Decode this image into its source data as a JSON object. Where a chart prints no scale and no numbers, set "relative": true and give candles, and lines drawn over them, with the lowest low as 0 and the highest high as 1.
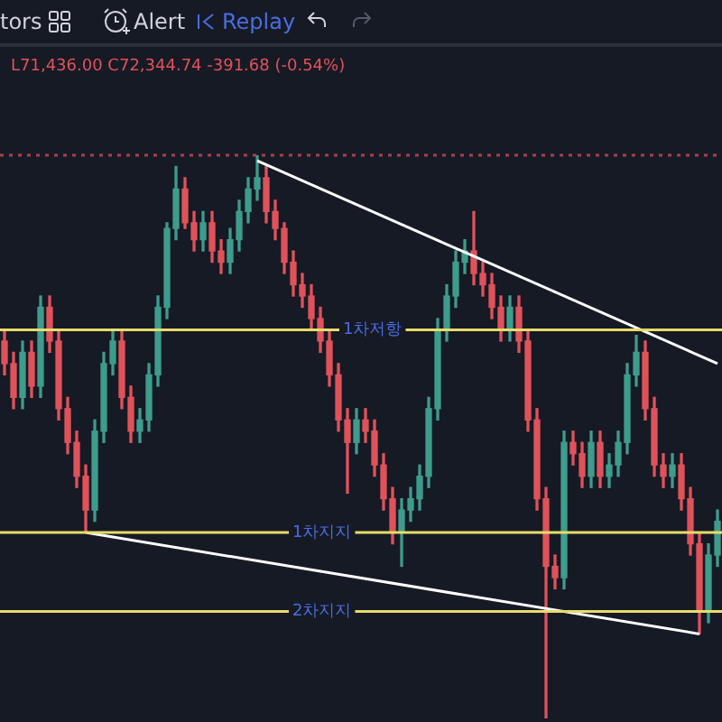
{
  "chart_data": {
    "type": "candlestick",
    "relative": true,
    "categories": [
      null,
      null,
      null,
      null,
      null,
      null,
      null,
      null,
      null,
      null,
      null,
      null,
      null,
      null,
      null,
      null,
      null,
      null,
      null,
      null,
      null,
      null,
      null,
      null,
      null,
      null,
      null,
      null,
      null,
      null,
      null,
      null,
      null,
      null,
      null,
      null,
      null,
      null,
      null,
      null,
      null,
      null,
      null,
      null,
      null,
      null,
      null,
      null,
      null,
      null,
      null,
      null,
      null,
      null,
      null,
      null,
      null,
      null,
      null,
      null,
      null,
      null,
      null,
      null,
      null,
      null,
      null,
      null,
      null,
      null,
      null,
      null,
      null,
      null,
      null,
      null,
      null,
      null,
      null,
      null
    ],
    "ohlc": [
      [
        0.67,
        0.69,
        0.61,
        0.63
      ],
      [
        0.63,
        0.65,
        0.55,
        0.57
      ],
      [
        0.57,
        0.67,
        0.55,
        0.65
      ],
      [
        0.65,
        0.67,
        0.57,
        0.59
      ],
      [
        0.59,
        0.75,
        0.57,
        0.73
      ],
      [
        0.73,
        0.75,
        0.65,
        0.67
      ],
      [
        0.67,
        0.69,
        0.53,
        0.55
      ],
      [
        0.55,
        0.57,
        0.47,
        0.49
      ],
      [
        0.49,
        0.51,
        0.41,
        0.43
      ],
      [
        0.43,
        0.45,
        0.33,
        0.37
      ],
      [
        0.37,
        0.53,
        0.35,
        0.51
      ],
      [
        0.51,
        0.65,
        0.49,
        0.63
      ],
      [
        0.63,
        0.69,
        0.61,
        0.67
      ],
      [
        0.67,
        0.69,
        0.55,
        0.57
      ],
      [
        0.57,
        0.59,
        0.49,
        0.51
      ],
      [
        0.51,
        0.55,
        0.49,
        0.53
      ],
      [
        0.53,
        0.63,
        0.51,
        0.61
      ],
      [
        0.61,
        0.75,
        0.59,
        0.73
      ],
      [
        0.73,
        0.88,
        0.71,
        0.87
      ],
      [
        0.87,
        0.98,
        0.85,
        0.94
      ],
      [
        0.94,
        0.96,
        0.87,
        0.88
      ],
      [
        0.88,
        0.9,
        0.83,
        0.85
      ],
      [
        0.85,
        0.9,
        0.83,
        0.88
      ],
      [
        0.88,
        0.9,
        0.81,
        0.83
      ],
      [
        0.83,
        0.85,
        0.79,
        0.81
      ],
      [
        0.81,
        0.87,
        0.79,
        0.85
      ],
      [
        0.85,
        0.92,
        0.83,
        0.9
      ],
      [
        0.9,
        0.96,
        0.88,
        0.94
      ],
      [
        0.94,
        1.0,
        0.92,
        0.96
      ],
      [
        0.96,
        0.98,
        0.88,
        0.9
      ],
      [
        0.9,
        0.92,
        0.85,
        0.87
      ],
      [
        0.87,
        0.88,
        0.79,
        0.81
      ],
      [
        0.81,
        0.83,
        0.75,
        0.77
      ],
      [
        0.77,
        0.79,
        0.73,
        0.75
      ],
      [
        0.75,
        0.77,
        0.69,
        0.71
      ],
      [
        0.71,
        0.73,
        0.65,
        0.67
      ],
      [
        0.67,
        0.69,
        0.59,
        0.61
      ],
      [
        0.61,
        0.63,
        0.51,
        0.53
      ],
      [
        0.53,
        0.55,
        0.4,
        0.49
      ],
      [
        0.49,
        0.55,
        0.47,
        0.53
      ],
      [
        0.53,
        0.55,
        0.49,
        0.51
      ],
      [
        0.51,
        0.53,
        0.43,
        0.45
      ],
      [
        0.45,
        0.47,
        0.37,
        0.39
      ],
      [
        0.39,
        0.41,
        0.31,
        0.33
      ],
      [
        0.33,
        0.39,
        0.27,
        0.37
      ],
      [
        0.37,
        0.41,
        0.35,
        0.39
      ],
      [
        0.39,
        0.45,
        0.37,
        0.43
      ],
      [
        0.43,
        0.57,
        0.41,
        0.55
      ],
      [
        0.55,
        0.71,
        0.53,
        0.69
      ],
      [
        0.69,
        0.77,
        0.67,
        0.75
      ],
      [
        0.75,
        0.83,
        0.73,
        0.81
      ],
      [
        0.81,
        0.85,
        0.79,
        0.83
      ],
      [
        0.83,
        0.9,
        0.77,
        0.79
      ],
      [
        0.79,
        0.81,
        0.75,
        0.77
      ],
      [
        0.77,
        0.79,
        0.71,
        0.73
      ],
      [
        0.73,
        0.75,
        0.67,
        0.69
      ],
      [
        0.69,
        0.75,
        0.67,
        0.73
      ],
      [
        0.73,
        0.75,
        0.65,
        0.67
      ],
      [
        0.67,
        0.69,
        0.51,
        0.53
      ],
      [
        0.53,
        0.55,
        0.37,
        0.39
      ],
      [
        0.39,
        0.41,
        0,
        0.27
      ],
      [
        0.27,
        0.29,
        0.23,
        0.25
      ],
      [
        0.25,
        0.51,
        0.23,
        0.49
      ],
      [
        0.49,
        0.51,
        0.45,
        0.47
      ],
      [
        0.47,
        0.49,
        0.41,
        0.43
      ],
      [
        0.43,
        0.51,
        0.41,
        0.49
      ],
      [
        0.49,
        0.51,
        0.41,
        0.43
      ],
      [
        0.43,
        0.47,
        0.41,
        0.45
      ],
      [
        0.45,
        0.51,
        0.43,
        0.49
      ],
      [
        0.49,
        0.63,
        0.47,
        0.61
      ],
      [
        0.61,
        0.68,
        0.59,
        0.65
      ],
      [
        0.65,
        0.67,
        0.53,
        0.55
      ],
      [
        0.55,
        0.57,
        0.43,
        0.45
      ],
      [
        0.45,
        0.47,
        0.41,
        0.43
      ],
      [
        0.43,
        0.47,
        0.41,
        0.45
      ],
      [
        0.45,
        0.47,
        0.37,
        0.39
      ],
      [
        0.39,
        0.41,
        0.29,
        0.31
      ],
      [
        0.31,
        0.33,
        0.15,
        0.19
      ],
      [
        0.19,
        0.31,
        0.17,
        0.29
      ],
      [
        0.29,
        0.37,
        0.27,
        0.35
      ]
    ],
    "series": [
      {
        "type": "line",
        "color": "#ffffff",
        "values": [
          null,
          null,
          null,
          null,
          null,
          null,
          null,
          null,
          null,
          null,
          null,
          null,
          null,
          null,
          null,
          null,
          null,
          null,
          null,
          null,
          null,
          null,
          null,
          null,
          null,
          null,
          null,
          null,
          0.99,
          null,
          null,
          null,
          null,
          null,
          null,
          null,
          null,
          null,
          null,
          null,
          null,
          null,
          null,
          null,
          null,
          null,
          null,
          null,
          null,
          null,
          null,
          null,
          null,
          null,
          null,
          null,
          null,
          null,
          null,
          null,
          null,
          null,
          null,
          null,
          null,
          null,
          null,
          null,
          null,
          null,
          null,
          null,
          null,
          null,
          null,
          null,
          null,
          null,
          null,
          0.63
        ]
      },
      {
        "type": "line",
        "color": "#ffffff",
        "values": [
          null,
          null,
          null,
          null,
          null,
          null,
          null,
          null,
          null,
          0.33,
          null,
          null,
          null,
          null,
          null,
          null,
          null,
          null,
          null,
          null,
          null,
          null,
          null,
          null,
          null,
          null,
          null,
          null,
          null,
          null,
          null,
          null,
          null,
          null,
          null,
          null,
          null,
          null,
          null,
          null,
          null,
          null,
          null,
          null,
          null,
          null,
          null,
          null,
          null,
          null,
          null,
          null,
          null,
          null,
          null,
          null,
          null,
          null,
          null,
          null,
          null,
          null,
          null,
          null,
          null,
          null,
          null,
          null,
          null,
          null,
          null,
          null,
          null,
          null,
          null,
          null,
          null,
          0.15,
          null,
          null
        ]
      }
    ],
    "ref_lines": [
      {
        "axis": "y",
        "value": 1.0,
        "color": "#a8404c",
        "line_style": "dotted"
      },
      {
        "axis": "y",
        "value": 0.69,
        "label": "1차저항",
        "color": "#e6dc6a",
        "line_style": "solid"
      },
      {
        "axis": "y",
        "value": 0.33,
        "label": "1차지지",
        "color": "#e6dc6a",
        "line_style": "solid"
      },
      {
        "axis": "y",
        "value": 0.19,
        "label": "2차지지",
        "color": "#e6dc6a",
        "line_style": "solid"
      }
    ],
    "annotations": [
      "tors",
      "Alert",
      "Replay",
      "L71,436.00 C72,344.74 -391.68 (-0.54%)"
    ]
  }
}
